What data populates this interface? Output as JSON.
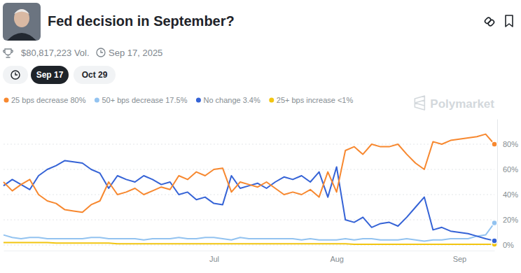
{
  "chart_data": {
    "type": "line",
    "title": "Fed decision in September?",
    "annotations": [
      "$80,817,223 Vol.",
      "Sep 17, 2025",
      "Sep 17",
      "Oct 29",
      "Polymarket"
    ],
    "categories": [
      null,
      null,
      null,
      null,
      null,
      null,
      null,
      null,
      null,
      null,
      null,
      null,
      null,
      null,
      null,
      null,
      null,
      null,
      null,
      null,
      null,
      null,
      null,
      null,
      "Jul",
      null,
      null,
      null,
      null,
      null,
      null,
      null,
      null,
      null,
      null,
      null,
      null,
      null,
      "Aug",
      null,
      null,
      null,
      null,
      null,
      null,
      null,
      null,
      null,
      null,
      null,
      null,
      null,
      "Sep",
      null,
      null,
      null,
      null
    ],
    "series": [
      {
        "name": "25 bps decrease 80%",
        "color": "#f7882f",
        "values": [
          50,
          43,
          48,
          52,
          40,
          35,
          33,
          28,
          27,
          26,
          32,
          35,
          50,
          40,
          42,
          45,
          40,
          43,
          46,
          44,
          55,
          52,
          58,
          55,
          60,
          61,
          42,
          50,
          48,
          46,
          50,
          45,
          40,
          42,
          40,
          44,
          38,
          58,
          42,
          75,
          78,
          72,
          80,
          78,
          78,
          80,
          72,
          65,
          60,
          82,
          80,
          83,
          84,
          85,
          86,
          88,
          80
        ]
      },
      {
        "name": "50+ bps decrease 17.5%",
        "color": "#93c3f0",
        "values": [
          8,
          6,
          5,
          6,
          6,
          5,
          5,
          5,
          5,
          5,
          6,
          6,
          5,
          5,
          5,
          5,
          4,
          5,
          5,
          5,
          6,
          5,
          5,
          6,
          6,
          5,
          4,
          6,
          5,
          5,
          5,
          5,
          5,
          5,
          4,
          5,
          4,
          4,
          4,
          5,
          4,
          5,
          5,
          4,
          4,
          4,
          5,
          4,
          3,
          4,
          4,
          5,
          5,
          5,
          7,
          8,
          17.5
        ]
      },
      {
        "name": "No change 3.4%",
        "color": "#3563d6",
        "values": [
          47,
          52,
          48,
          44,
          55,
          60,
          63,
          67,
          66,
          65,
          60,
          57,
          45,
          55,
          52,
          50,
          55,
          52,
          48,
          50,
          40,
          42,
          36,
          38,
          33,
          32,
          55,
          45,
          47,
          49,
          45,
          50,
          54,
          52,
          55,
          50,
          58,
          38,
          62,
          20,
          18,
          22,
          14,
          17,
          18,
          15,
          22,
          30,
          38,
          12,
          14,
          11,
          10,
          9,
          7,
          5,
          3.4
        ]
      },
      {
        "name": "25+ bps increase <1%",
        "color": "#f2c511",
        "values": [
          2,
          2,
          2,
          2,
          2,
          2,
          1.5,
          1.5,
          1.5,
          1.5,
          1.5,
          1.5,
          1.5,
          1,
          1,
          1,
          1,
          1,
          1,
          1,
          1,
          1,
          1,
          1,
          1,
          1,
          1,
          1,
          1,
          1,
          1,
          1,
          1,
          1,
          1,
          1,
          1,
          1,
          1,
          1,
          0.5,
          0.5,
          0.5,
          0.5,
          0.5,
          0.5,
          0.5,
          0.5,
          0.5,
          0.5,
          0.5,
          0.5,
          0.5,
          0.5,
          0.5,
          0.5,
          0.5
        ]
      }
    ],
    "ylim": [
      0,
      100
    ],
    "yticks": [
      {
        "value": 0,
        "label": "0%"
      },
      {
        "value": 20,
        "label": "20%"
      },
      {
        "value": 40,
        "label": "40%"
      },
      {
        "value": 60,
        "label": "60%"
      },
      {
        "value": 80,
        "label": "80%"
      }
    ],
    "grid": true,
    "legend": "top-left"
  }
}
